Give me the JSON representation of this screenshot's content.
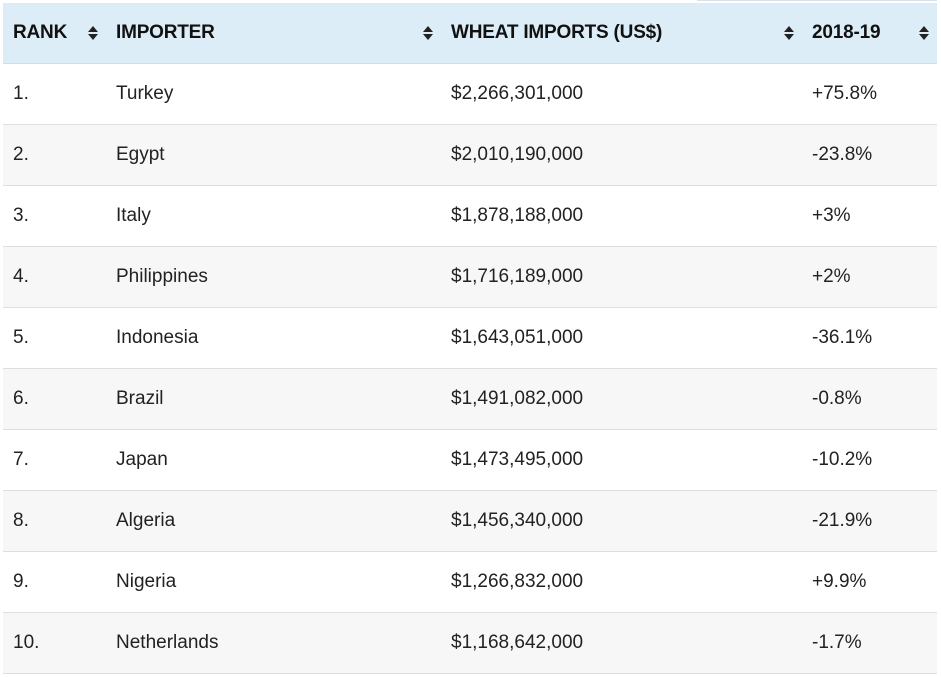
{
  "table": {
    "headers": {
      "rank": "RANK",
      "importer": "IMPORTER",
      "imports": "WHEAT IMPORTS (US$)",
      "change": "2018-19"
    },
    "rows": [
      {
        "rank": "1.",
        "importer": "Turkey",
        "imports": "$2,266,301,000",
        "change": "+75.8%"
      },
      {
        "rank": "2.",
        "importer": "Egypt",
        "imports": "$2,010,190,000",
        "change": "-23.8%"
      },
      {
        "rank": "3.",
        "importer": "Italy",
        "imports": "$1,878,188,000",
        "change": "+3%"
      },
      {
        "rank": "4.",
        "importer": "Philippines",
        "imports": "$1,716,189,000",
        "change": "+2%"
      },
      {
        "rank": "5.",
        "importer": "Indonesia",
        "imports": "$1,643,051,000",
        "change": "-36.1%"
      },
      {
        "rank": "6.",
        "importer": "Brazil",
        "imports": "$1,491,082,000",
        "change": "-0.8%"
      },
      {
        "rank": "7.",
        "importer": "Japan",
        "imports": "$1,473,495,000",
        "change": "-10.2%"
      },
      {
        "rank": "8.",
        "importer": "Algeria",
        "imports": "$1,456,340,000",
        "change": "-21.9%"
      },
      {
        "rank": "9.",
        "importer": "Nigeria",
        "imports": "$1,266,832,000",
        "change": "+9.9%"
      },
      {
        "rank": "10.",
        "importer": "Netherlands",
        "imports": "$1,168,642,000",
        "change": "-1.7%"
      }
    ]
  },
  "icons": {
    "sort": "sort-icon"
  },
  "colors": {
    "header_background": "#dcedf8",
    "row_even_background": "#f7f7f7",
    "row_odd_background": "#ffffff",
    "text": "#222222"
  }
}
